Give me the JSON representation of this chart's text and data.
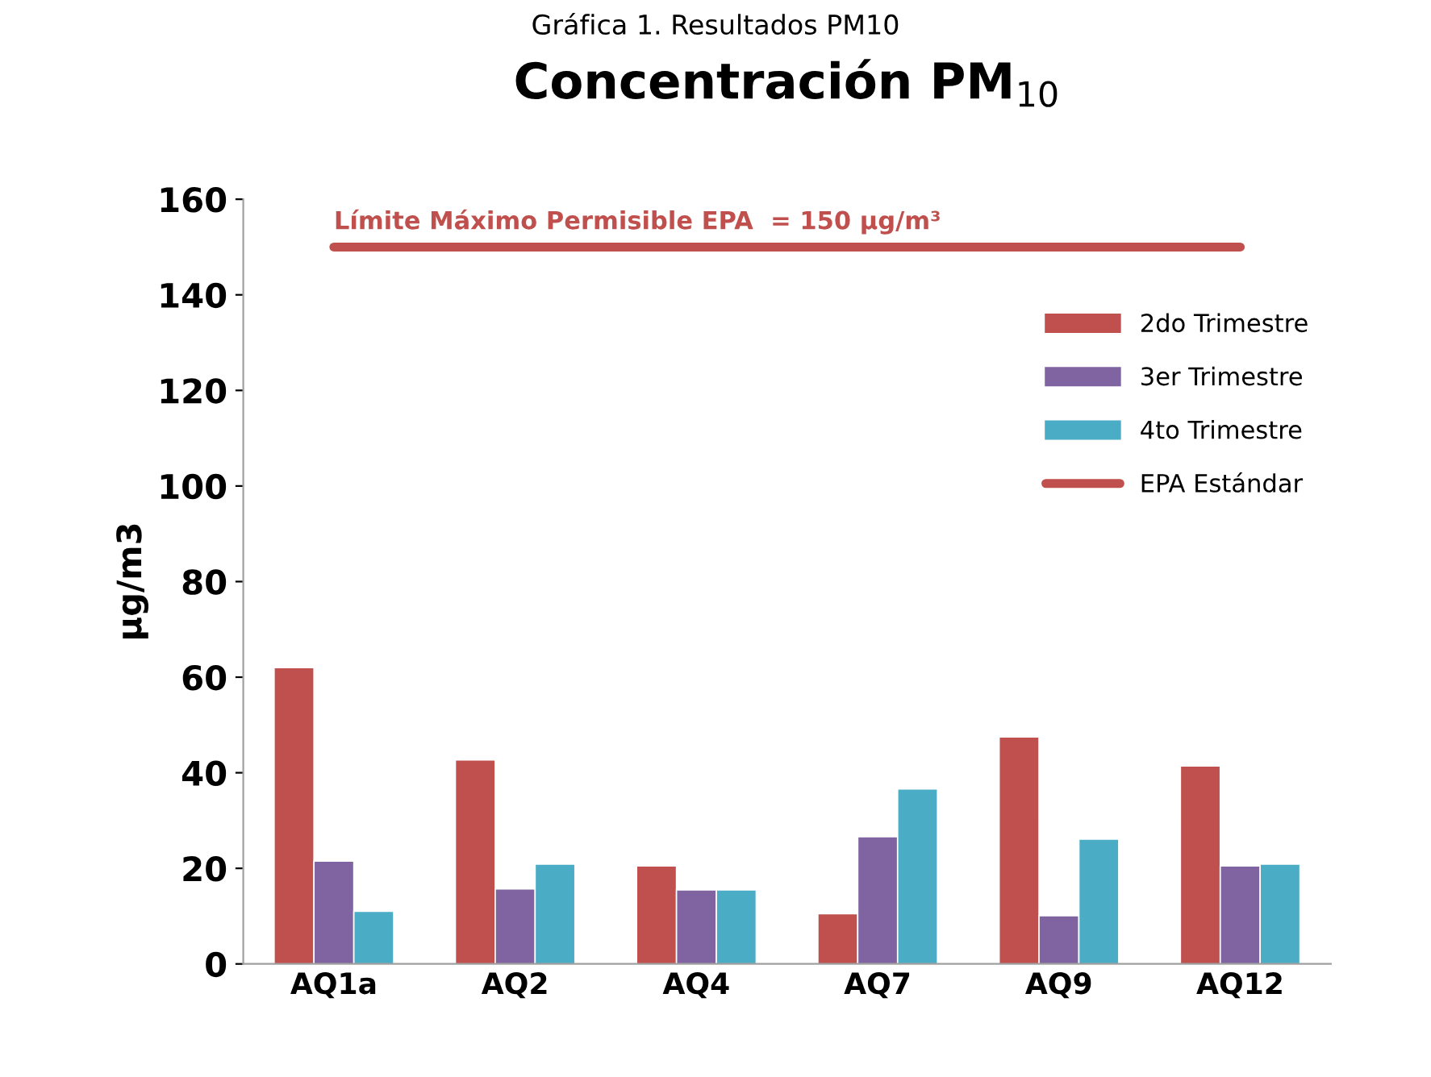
{
  "chart_data": {
    "type": "bar",
    "title": "Concentración PM$_{10}$",
    "ylabel": "µg/m3",
    "categories": [
      "AQ1a",
      "AQ2",
      "AQ4",
      "AQ7",
      "AQ9",
      "AQ12"
    ],
    "series": [
      {
        "name": "2do Trimestre",
        "color": "#c0504d",
        "values": [
          62,
          42.7,
          20.5,
          10.5,
          47.5,
          41.4
        ]
      },
      {
        "name": "3er Trimestre",
        "color": "#8064a2",
        "values": [
          21.5,
          15.7,
          15.5,
          26.6,
          10.1,
          20.5
        ]
      },
      {
        "name": "4to Trimestre",
        "color": "#4bacc6",
        "values": [
          11,
          20.9,
          15.5,
          36.6,
          26.1,
          20.9
        ]
      },
      {
        "name": "EPA Estándar",
        "type": "line",
        "color": "#c0504d",
        "values": [
          150,
          150,
          150,
          150,
          150,
          150
        ]
      }
    ],
    "annotations": [
      "Gráfica 1. Resultados PM10",
      {
        "text": "Límite Máximo Permisible EPA  = 150 µg/m³",
        "x": "AQ1a",
        "y": 150
      }
    ],
    "ylim": [
      0,
      160
    ],
    "yticks": [
      0,
      20,
      40,
      60,
      80,
      100,
      120,
      140,
      160
    ],
    "grid": false,
    "legend": "top right",
    "marker": "none"
  }
}
